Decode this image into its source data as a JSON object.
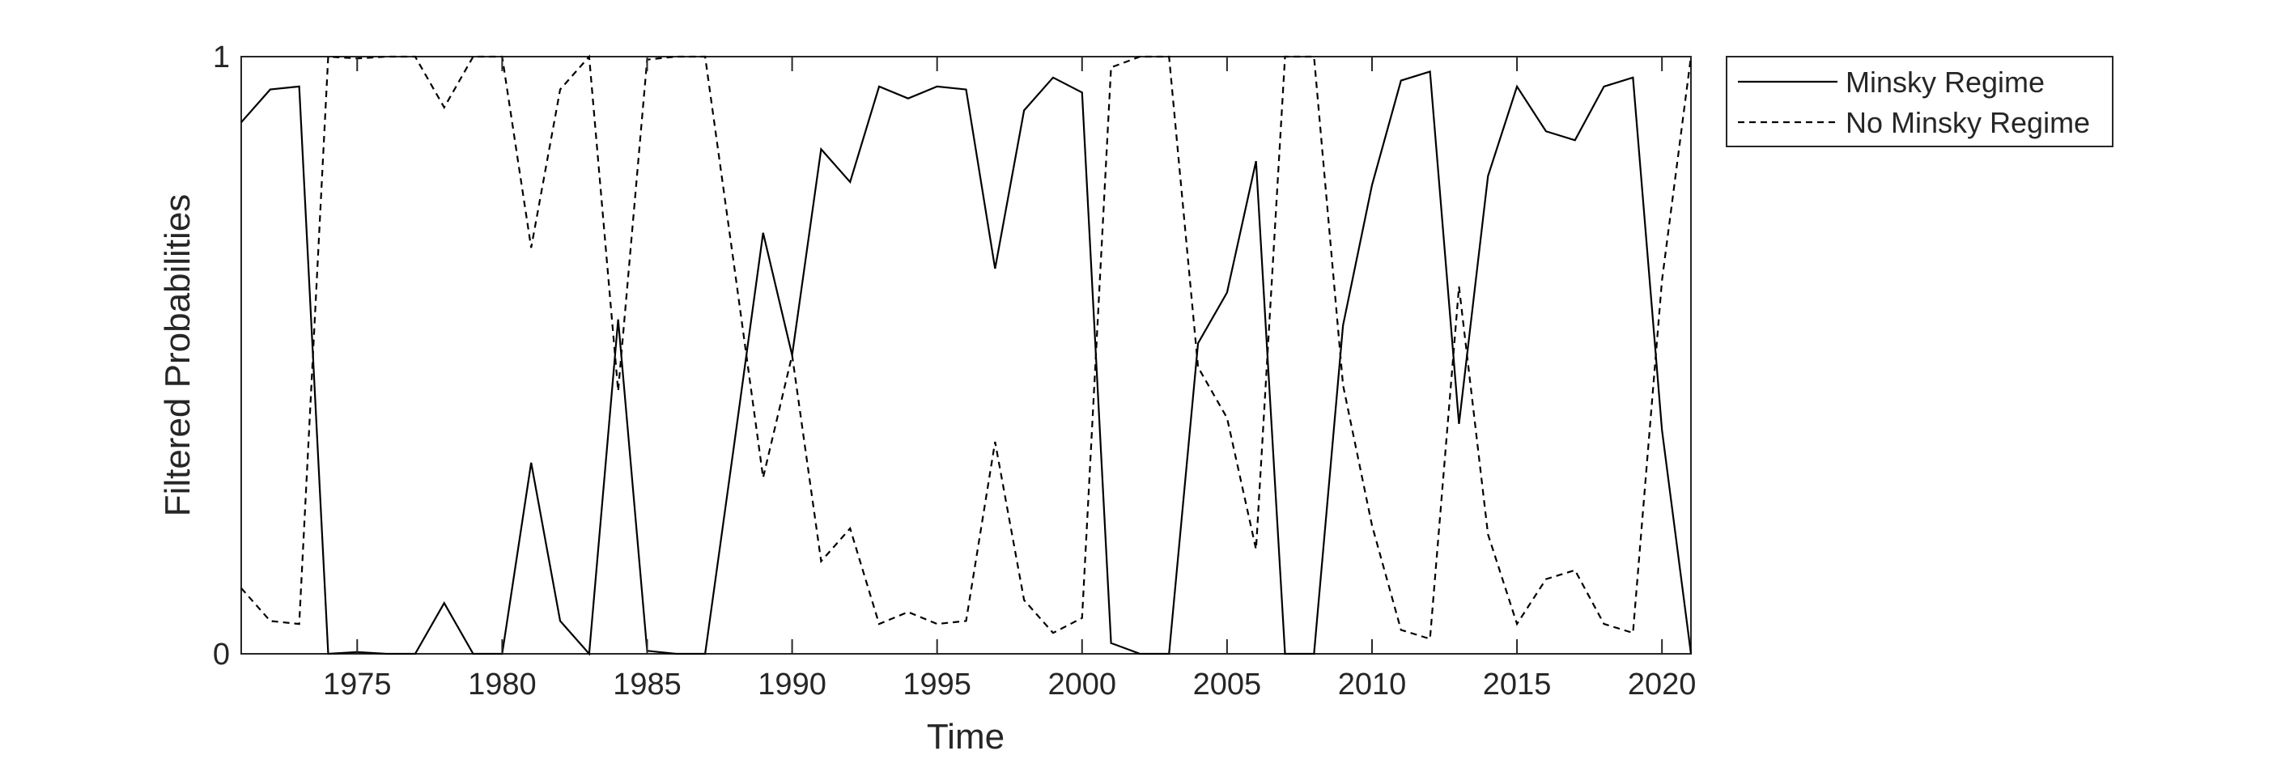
{
  "chart_data": {
    "type": "line",
    "xlabel": "Time",
    "ylabel": "Filtered Probabilities",
    "xlim": [
      1971,
      2021
    ],
    "ylim": [
      0,
      1
    ],
    "x_ticks": [
      1975,
      1980,
      1985,
      1990,
      1995,
      2000,
      2005,
      2010,
      2015,
      2020
    ],
    "x_tick_labels": [
      "1975",
      "1980",
      "1985",
      "1990",
      "1995",
      "2000",
      "2005",
      "2010",
      "2015",
      "2020"
    ],
    "y_ticks": [
      0,
      1
    ],
    "y_tick_labels": [
      "0",
      "1"
    ],
    "grid": false,
    "legend_position": "outside top-right",
    "x": [
      1971,
      1972,
      1973,
      1974,
      1975,
      1976,
      1977,
      1978,
      1979,
      1980,
      1981,
      1982,
      1983,
      1984,
      1985,
      1986,
      1987,
      1988,
      1989,
      1990,
      1991,
      1992,
      1993,
      1994,
      1995,
      1996,
      1997,
      1998,
      1999,
      2000,
      2001,
      2002,
      2003,
      2004,
      2005,
      2006,
      2007,
      2008,
      2009,
      2010,
      2011,
      2012,
      2013,
      2014,
      2015,
      2016,
      2017,
      2018,
      2019,
      2020,
      2021
    ],
    "series": [
      {
        "name": "Minsky Regime",
        "line_style": "solid",
        "color": "#000000",
        "values": [
          0.89,
          0.945,
          0.95,
          0.0,
          0.003,
          0.0,
          0.0,
          0.085,
          0.0,
          0.0,
          0.32,
          0.055,
          0.0,
          0.56,
          0.005,
          0.0,
          0.0,
          0.35,
          0.705,
          0.5,
          0.845,
          0.79,
          0.95,
          0.93,
          0.95,
          0.945,
          0.645,
          0.91,
          0.965,
          0.94,
          0.018,
          0.0,
          0.0,
          0.52,
          0.605,
          0.825,
          0.0,
          0.0,
          0.55,
          0.785,
          0.96,
          0.975,
          0.385,
          0.8,
          0.95,
          0.875,
          0.86,
          0.95,
          0.965,
          0.375,
          0.0
        ]
      },
      {
        "name": "No Minsky Regime",
        "line_style": "dashed",
        "color": "#000000",
        "values": [
          0.11,
          0.055,
          0.05,
          1.0,
          0.997,
          1.0,
          1.0,
          0.915,
          1.0,
          1.0,
          0.68,
          0.945,
          1.0,
          0.44,
          0.995,
          1.0,
          1.0,
          0.65,
          0.295,
          0.5,
          0.155,
          0.21,
          0.05,
          0.07,
          0.05,
          0.055,
          0.355,
          0.09,
          0.035,
          0.06,
          0.982,
          1.0,
          1.0,
          0.48,
          0.395,
          0.175,
          1.0,
          1.0,
          0.45,
          0.215,
          0.04,
          0.025,
          0.615,
          0.2,
          0.05,
          0.125,
          0.14,
          0.05,
          0.035,
          0.625,
          1.0
        ]
      }
    ]
  }
}
